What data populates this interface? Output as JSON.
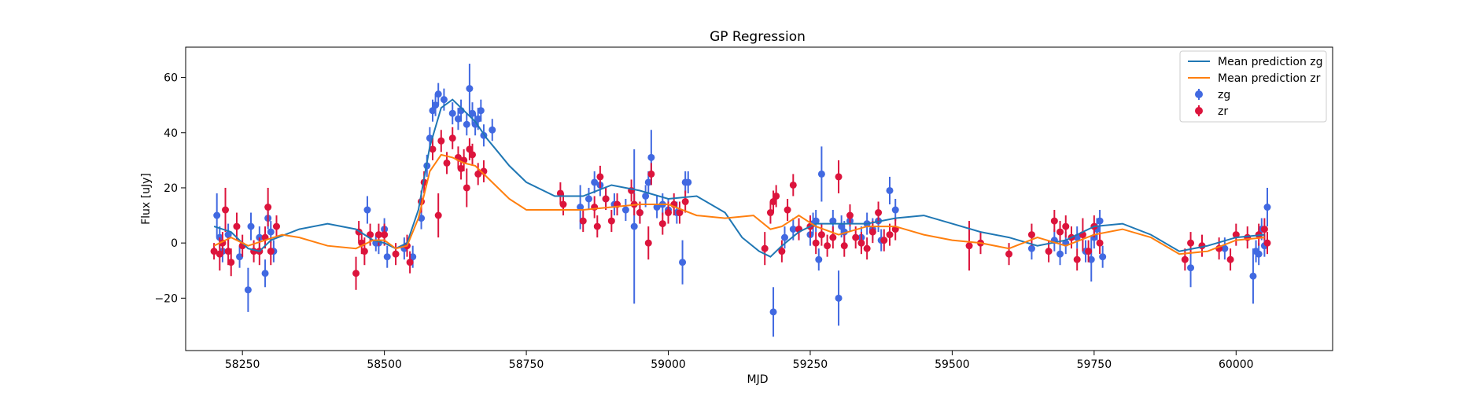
{
  "chart_data": {
    "type": "scatter",
    "title": "GP Regression",
    "xlabel": "MJD",
    "ylabel": "Flux [uJy]",
    "xlim": [
      58150,
      60170
    ],
    "ylim": [
      -39,
      71
    ],
    "xticks": [
      58250,
      58500,
      58750,
      59000,
      59250,
      59500,
      59750,
      60000
    ],
    "yticks": [
      -20,
      0,
      20,
      40,
      60
    ],
    "grid": false,
    "legend_position": "top-right",
    "legend": {
      "lines": [
        "Mean prediction zg",
        "Mean prediction zr"
      ],
      "points": [
        "zg",
        "zr"
      ]
    },
    "colors": {
      "mean_zg": "#1f77b4",
      "mean_zr": "#ff7f0e",
      "zg": "#4169e1",
      "zr": "#dc143c"
    },
    "mean_prediction_zg": {
      "x": [
        58200,
        58230,
        58260,
        58280,
        58300,
        58350,
        58400,
        58450,
        58480,
        58500,
        58520,
        58540,
        58560,
        58580,
        58600,
        58620,
        58640,
        58660,
        58680,
        58700,
        58720,
        58750,
        58800,
        58850,
        58900,
        58950,
        59000,
        59050,
        59100,
        59130,
        59160,
        59180,
        59200,
        59230,
        59260,
        59300,
        59350,
        59400,
        59450,
        59500,
        59550,
        59600,
        59650,
        59700,
        59750,
        59800,
        59850,
        59900,
        59950,
        60000,
        60050
      ],
      "y": [
        6,
        4,
        -2,
        -3,
        1,
        5,
        7,
        5,
        1,
        0,
        -2,
        0,
        12,
        35,
        49,
        52,
        48,
        44,
        38,
        33,
        28,
        22,
        17,
        17,
        21,
        19,
        16,
        17,
        11,
        2,
        -3,
        -5,
        -1,
        4,
        7,
        7,
        7,
        9,
        10,
        7,
        4,
        2,
        -1,
        1,
        6,
        7,
        3,
        -3,
        -1,
        2,
        3
      ]
    },
    "mean_prediction_zr": {
      "x": [
        58200,
        58230,
        58260,
        58290,
        58320,
        58350,
        58400,
        58450,
        58480,
        58500,
        58520,
        58540,
        58560,
        58580,
        58600,
        58620,
        58640,
        58660,
        58680,
        58700,
        58720,
        58750,
        58800,
        58850,
        58900,
        58950,
        59000,
        59050,
        59100,
        59150,
        59180,
        59200,
        59230,
        59260,
        59300,
        59350,
        59400,
        59450,
        59500,
        59550,
        59600,
        59650,
        59700,
        59750,
        59800,
        59850,
        59900,
        59950,
        60000,
        60050
      ],
      "y": [
        -1,
        2,
        -1,
        1,
        3,
        2,
        -1,
        -2,
        1,
        1,
        -2,
        -1,
        9,
        26,
        32,
        31,
        29,
        28,
        24,
        20,
        16,
        12,
        12,
        12,
        13,
        14,
        14,
        10,
        9,
        10,
        5,
        6,
        10,
        6,
        3,
        6,
        6,
        3,
        1,
        0,
        -2,
        2,
        -1,
        3,
        5,
        2,
        -4,
        -3,
        1,
        2
      ]
    },
    "series": [
      {
        "name": "zg",
        "points": [
          [
            58205,
            10,
            8
          ],
          [
            58210,
            2,
            4
          ],
          [
            58215,
            -3,
            4
          ],
          [
            58225,
            3,
            4
          ],
          [
            58245,
            -5,
            4
          ],
          [
            58260,
            -17,
            8
          ],
          [
            58265,
            6,
            5
          ],
          [
            58280,
            2,
            4
          ],
          [
            58290,
            -11,
            5
          ],
          [
            58295,
            9,
            4
          ],
          [
            58300,
            4,
            4
          ],
          [
            58305,
            -3,
            4
          ],
          [
            58470,
            12,
            5
          ],
          [
            58485,
            0,
            3
          ],
          [
            58490,
            0,
            4
          ],
          [
            58500,
            5,
            4
          ],
          [
            58505,
            -5,
            4
          ],
          [
            58535,
            -2,
            4
          ],
          [
            58550,
            -5,
            4
          ],
          [
            58565,
            9,
            4
          ],
          [
            58575,
            28,
            4
          ],
          [
            58580,
            38,
            4
          ],
          [
            58585,
            48,
            4
          ],
          [
            58590,
            50,
            4
          ],
          [
            58595,
            54,
            4
          ],
          [
            58605,
            52,
            4
          ],
          [
            58620,
            47,
            4
          ],
          [
            58630,
            45,
            4
          ],
          [
            58635,
            48,
            4
          ],
          [
            58645,
            43,
            4
          ],
          [
            58650,
            56,
            9
          ],
          [
            58655,
            47,
            4
          ],
          [
            58660,
            43,
            4
          ],
          [
            58665,
            45,
            4
          ],
          [
            58670,
            48,
            4
          ],
          [
            58675,
            39,
            4
          ],
          [
            58690,
            41,
            4
          ],
          [
            58845,
            13,
            8
          ],
          [
            58860,
            16,
            4
          ],
          [
            58870,
            22,
            4
          ],
          [
            58880,
            21,
            4
          ],
          [
            58890,
            16,
            4
          ],
          [
            58905,
            14,
            4
          ],
          [
            58925,
            12,
            4
          ],
          [
            58940,
            6,
            28
          ],
          [
            58950,
            11,
            4
          ],
          [
            58960,
            17,
            4
          ],
          [
            58965,
            22,
            4
          ],
          [
            58970,
            31,
            10
          ],
          [
            58980,
            13,
            4
          ],
          [
            58990,
            14,
            4
          ],
          [
            59000,
            12,
            4
          ],
          [
            59015,
            11,
            4
          ],
          [
            59025,
            -7,
            8
          ],
          [
            59030,
            22,
            4
          ],
          [
            59035,
            22,
            4
          ],
          [
            59185,
            -25,
            9
          ],
          [
            59205,
            2,
            4
          ],
          [
            59220,
            5,
            4
          ],
          [
            59250,
            3,
            4
          ],
          [
            59255,
            7,
            4
          ],
          [
            59260,
            8,
            4
          ],
          [
            59265,
            -6,
            4
          ],
          [
            59270,
            25,
            10
          ],
          [
            59290,
            8,
            4
          ],
          [
            59300,
            -20,
            10
          ],
          [
            59305,
            6,
            4
          ],
          [
            59310,
            4,
            4
          ],
          [
            59320,
            8,
            4
          ],
          [
            59340,
            2,
            4
          ],
          [
            59350,
            7,
            4
          ],
          [
            59360,
            5,
            4
          ],
          [
            59370,
            8,
            4
          ],
          [
            59375,
            1,
            4
          ],
          [
            59390,
            19,
            5
          ],
          [
            59400,
            12,
            4
          ],
          [
            59640,
            -2,
            4
          ],
          [
            59680,
            1,
            4
          ],
          [
            59690,
            -4,
            4
          ],
          [
            59700,
            0,
            4
          ],
          [
            59720,
            2,
            4
          ],
          [
            59735,
            -3,
            4
          ],
          [
            59745,
            -6,
            8
          ],
          [
            59750,
            2,
            4
          ],
          [
            59755,
            5,
            4
          ],
          [
            59760,
            8,
            4
          ],
          [
            59765,
            -5,
            4
          ],
          [
            59920,
            -9,
            7
          ],
          [
            59980,
            -2,
            4
          ],
          [
            60030,
            -12,
            10
          ],
          [
            60035,
            -3,
            4
          ],
          [
            60040,
            -4,
            4
          ],
          [
            60045,
            5,
            4
          ],
          [
            60050,
            -1,
            4
          ],
          [
            60055,
            13,
            7
          ]
        ]
      },
      {
        "name": "zr",
        "points": [
          [
            58200,
            -3,
            3
          ],
          [
            58210,
            -4,
            6
          ],
          [
            58215,
            0,
            4
          ],
          [
            58220,
            12,
            8
          ],
          [
            58225,
            -3,
            5
          ],
          [
            58230,
            -7,
            5
          ],
          [
            58240,
            6,
            5
          ],
          [
            58250,
            -1,
            4
          ],
          [
            58270,
            -3,
            4
          ],
          [
            58280,
            -3,
            5
          ],
          [
            58290,
            2,
            4
          ],
          [
            58295,
            13,
            7
          ],
          [
            58300,
            -3,
            5
          ],
          [
            58310,
            6,
            4
          ],
          [
            58450,
            -11,
            6
          ],
          [
            58455,
            4,
            4
          ],
          [
            58460,
            0,
            4
          ],
          [
            58465,
            -3,
            5
          ],
          [
            58475,
            3,
            4
          ],
          [
            58490,
            3,
            4
          ],
          [
            58500,
            3,
            4
          ],
          [
            58520,
            -4,
            4
          ],
          [
            58540,
            -1,
            4
          ],
          [
            58545,
            -7,
            4
          ],
          [
            58565,
            15,
            4
          ],
          [
            58570,
            22,
            4
          ],
          [
            58585,
            34,
            4
          ],
          [
            58595,
            10,
            8
          ],
          [
            58600,
            37,
            4
          ],
          [
            58610,
            29,
            4
          ],
          [
            58620,
            38,
            4
          ],
          [
            58630,
            31,
            4
          ],
          [
            58635,
            27,
            4
          ],
          [
            58640,
            30,
            4
          ],
          [
            58645,
            20,
            7
          ],
          [
            58650,
            34,
            4
          ],
          [
            58655,
            32,
            4
          ],
          [
            58665,
            25,
            4
          ],
          [
            58675,
            26,
            4
          ],
          [
            58810,
            18,
            4
          ],
          [
            58815,
            14,
            4
          ],
          [
            58850,
            8,
            4
          ],
          [
            58870,
            13,
            4
          ],
          [
            58875,
            6,
            4
          ],
          [
            58880,
            24,
            4
          ],
          [
            58890,
            16,
            4
          ],
          [
            58900,
            8,
            4
          ],
          [
            58910,
            14,
            4
          ],
          [
            58935,
            19,
            4
          ],
          [
            58940,
            14,
            4
          ],
          [
            58950,
            11,
            4
          ],
          [
            58965,
            0,
            6
          ],
          [
            58970,
            25,
            4
          ],
          [
            58990,
            7,
            4
          ],
          [
            59000,
            11,
            4
          ],
          [
            59010,
            14,
            4
          ],
          [
            59020,
            11,
            4
          ],
          [
            59030,
            15,
            4
          ],
          [
            59170,
            -2,
            6
          ],
          [
            59180,
            11,
            4
          ],
          [
            59185,
            15,
            4
          ],
          [
            59190,
            17,
            4
          ],
          [
            59200,
            -3,
            4
          ],
          [
            59210,
            12,
            4
          ],
          [
            59220,
            21,
            4
          ],
          [
            59230,
            5,
            4
          ],
          [
            59250,
            6,
            4
          ],
          [
            59260,
            0,
            4
          ],
          [
            59270,
            3,
            4
          ],
          [
            59280,
            -1,
            4
          ],
          [
            59290,
            2,
            4
          ],
          [
            59300,
            24,
            6
          ],
          [
            59310,
            -1,
            4
          ],
          [
            59320,
            10,
            4
          ],
          [
            59330,
            2,
            4
          ],
          [
            59340,
            0,
            4
          ],
          [
            59350,
            -2,
            4
          ],
          [
            59360,
            4,
            4
          ],
          [
            59370,
            11,
            4
          ],
          [
            59380,
            1,
            4
          ],
          [
            59390,
            3,
            4
          ],
          [
            59400,
            5,
            4
          ],
          [
            59530,
            -1,
            9
          ],
          [
            59550,
            0,
            4
          ],
          [
            59600,
            -4,
            4
          ],
          [
            59640,
            3,
            4
          ],
          [
            59670,
            -3,
            4
          ],
          [
            59680,
            8,
            4
          ],
          [
            59690,
            4,
            4
          ],
          [
            59700,
            6,
            4
          ],
          [
            59710,
            2,
            4
          ],
          [
            59720,
            -6,
            4
          ],
          [
            59730,
            3,
            6
          ],
          [
            59740,
            -3,
            4
          ],
          [
            59750,
            6,
            4
          ],
          [
            59760,
            0,
            4
          ],
          [
            59910,
            -6,
            4
          ],
          [
            59920,
            0,
            4
          ],
          [
            59940,
            -1,
            4
          ],
          [
            59970,
            -2,
            4
          ],
          [
            59990,
            -6,
            4
          ],
          [
            60000,
            3,
            4
          ],
          [
            60020,
            2,
            4
          ],
          [
            60040,
            3,
            4
          ],
          [
            60050,
            5,
            4
          ],
          [
            60055,
            0,
            4
          ]
        ]
      }
    ]
  }
}
